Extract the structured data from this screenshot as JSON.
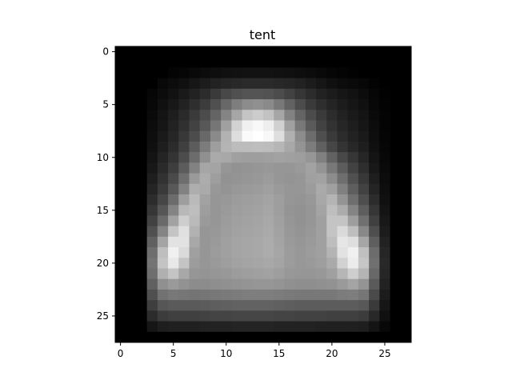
{
  "chart_data": {
    "type": "heatmap",
    "title": "tent",
    "colormap": "gray",
    "grid": false,
    "rows": 28,
    "cols": 28,
    "xlim": [
      -0.5,
      27.5
    ],
    "ylim": [
      27.5,
      -0.5
    ],
    "x_ticks": [
      0,
      5,
      10,
      15,
      20,
      25
    ],
    "y_ticks": [
      0,
      5,
      10,
      15,
      20,
      25
    ],
    "value_range": [
      0,
      255
    ],
    "values": [
      [
        0,
        0,
        0,
        0,
        0,
        0,
        0,
        0,
        0,
        0,
        0,
        0,
        0,
        0,
        0,
        0,
        0,
        0,
        0,
        0,
        0,
        0,
        0,
        0,
        0,
        0,
        0,
        0
      ],
      [
        0,
        0,
        0,
        0,
        0,
        0,
        0,
        0,
        0,
        0,
        0,
        0,
        0,
        0,
        0,
        0,
        0,
        0,
        0,
        0,
        0,
        0,
        0,
        0,
        0,
        0,
        0,
        0
      ],
      [
        0,
        0,
        0,
        0,
        0,
        4,
        6,
        9,
        12,
        14,
        16,
        17,
        18,
        18,
        18,
        17,
        16,
        14,
        12,
        9,
        6,
        4,
        2,
        0,
        0,
        0,
        0,
        0
      ],
      [
        0,
        0,
        0,
        0,
        8,
        12,
        16,
        22,
        28,
        34,
        38,
        40,
        42,
        42,
        42,
        40,
        38,
        34,
        28,
        22,
        16,
        12,
        10,
        7,
        3,
        0,
        0,
        0
      ],
      [
        0,
        0,
        0,
        6,
        12,
        18,
        26,
        34,
        44,
        58,
        72,
        80,
        84,
        84,
        82,
        76,
        66,
        54,
        44,
        34,
        28,
        22,
        18,
        12,
        6,
        2,
        0,
        0
      ],
      [
        0,
        0,
        0,
        8,
        16,
        24,
        34,
        46,
        60,
        80,
        104,
        126,
        140,
        144,
        138,
        120,
        98,
        76,
        58,
        46,
        36,
        28,
        22,
        16,
        8,
        3,
        0,
        0
      ],
      [
        0,
        0,
        0,
        10,
        20,
        30,
        42,
        58,
        76,
        100,
        132,
        166,
        196,
        204,
        194,
        166,
        130,
        100,
        76,
        58,
        44,
        34,
        26,
        20,
        10,
        4,
        0,
        0
      ],
      [
        0,
        0,
        0,
        12,
        22,
        34,
        48,
        66,
        88,
        118,
        160,
        210,
        240,
        248,
        238,
        208,
        160,
        120,
        90,
        66,
        50,
        38,
        30,
        22,
        12,
        4,
        0,
        0
      ],
      [
        0,
        0,
        0,
        14,
        26,
        38,
        56,
        76,
        104,
        138,
        178,
        222,
        250,
        255,
        248,
        222,
        176,
        140,
        108,
        78,
        58,
        44,
        34,
        26,
        14,
        5,
        0,
        0
      ],
      [
        0,
        0,
        0,
        16,
        30,
        44,
        64,
        92,
        124,
        158,
        180,
        188,
        188,
        190,
        188,
        182,
        168,
        148,
        124,
        96,
        70,
        52,
        40,
        30,
        16,
        6,
        0,
        0
      ],
      [
        0,
        0,
        0,
        20,
        36,
        52,
        76,
        108,
        144,
        170,
        168,
        160,
        158,
        158,
        160,
        162,
        160,
        158,
        150,
        128,
        98,
        72,
        54,
        38,
        20,
        8,
        0,
        0
      ],
      [
        0,
        0,
        0,
        24,
        42,
        62,
        92,
        130,
        166,
        164,
        150,
        146,
        148,
        150,
        152,
        150,
        150,
        154,
        162,
        148,
        120,
        92,
        66,
        46,
        24,
        10,
        0,
        0
      ],
      [
        0,
        0,
        0,
        30,
        50,
        74,
        110,
        154,
        172,
        158,
        146,
        148,
        150,
        152,
        156,
        150,
        148,
        150,
        160,
        162,
        140,
        110,
        80,
        56,
        30,
        12,
        0,
        0
      ],
      [
        0,
        0,
        0,
        36,
        58,
        88,
        130,
        174,
        170,
        152,
        148,
        152,
        154,
        156,
        160,
        154,
        150,
        150,
        156,
        170,
        160,
        128,
        94,
        66,
        36,
        14,
        0,
        0
      ],
      [
        0,
        0,
        0,
        44,
        70,
        108,
        158,
        186,
        162,
        150,
        152,
        156,
        158,
        160,
        164,
        158,
        150,
        148,
        152,
        168,
        180,
        148,
        110,
        78,
        44,
        16,
        0,
        0
      ],
      [
        0,
        0,
        0,
        54,
        86,
        132,
        184,
        190,
        158,
        150,
        154,
        158,
        160,
        162,
        166,
        158,
        148,
        146,
        150,
        164,
        190,
        172,
        132,
        94,
        54,
        20,
        0,
        0
      ],
      [
        0,
        0,
        0,
        66,
        106,
        162,
        206,
        186,
        154,
        150,
        156,
        160,
        162,
        164,
        168,
        160,
        150,
        146,
        150,
        160,
        196,
        196,
        158,
        112,
        64,
        24,
        0,
        0
      ],
      [
        0,
        0,
        0,
        80,
        132,
        196,
        224,
        178,
        150,
        152,
        158,
        162,
        164,
        166,
        170,
        162,
        152,
        148,
        152,
        160,
        196,
        218,
        190,
        136,
        78,
        28,
        0,
        0
      ],
      [
        0,
        0,
        0,
        96,
        164,
        226,
        226,
        168,
        150,
        154,
        160,
        164,
        166,
        168,
        172,
        164,
        154,
        150,
        154,
        160,
        190,
        230,
        222,
        166,
        94,
        34,
        0,
        0
      ],
      [
        0,
        0,
        0,
        110,
        190,
        240,
        218,
        160,
        150,
        156,
        160,
        164,
        166,
        168,
        172,
        166,
        156,
        152,
        156,
        160,
        180,
        226,
        240,
        192,
        108,
        38,
        0,
        0
      ],
      [
        0,
        0,
        0,
        116,
        196,
        232,
        196,
        156,
        150,
        154,
        158,
        162,
        164,
        166,
        168,
        164,
        156,
        152,
        154,
        158,
        170,
        210,
        236,
        198,
        112,
        40,
        0,
        0
      ],
      [
        0,
        0,
        0,
        110,
        176,
        196,
        168,
        150,
        148,
        150,
        152,
        156,
        158,
        160,
        162,
        158,
        152,
        150,
        150,
        152,
        160,
        182,
        206,
        180,
        104,
        38,
        0,
        0
      ],
      [
        0,
        0,
        0,
        96,
        144,
        154,
        146,
        140,
        140,
        142,
        144,
        146,
        148,
        150,
        150,
        148,
        144,
        142,
        142,
        144,
        146,
        154,
        164,
        148,
        90,
        34,
        0,
        0
      ],
      [
        0,
        0,
        0,
        80,
        114,
        120,
        118,
        116,
        118,
        120,
        122,
        124,
        126,
        126,
        126,
        124,
        122,
        120,
        120,
        120,
        120,
        124,
        126,
        118,
        74,
        28,
        0,
        0
      ],
      [
        0,
        0,
        0,
        62,
        86,
        90,
        90,
        90,
        92,
        94,
        96,
        98,
        98,
        98,
        98,
        96,
        94,
        92,
        92,
        92,
        92,
        92,
        92,
        88,
        58,
        22,
        0,
        0
      ],
      [
        0,
        0,
        0,
        44,
        60,
        64,
        64,
        64,
        66,
        68,
        68,
        70,
        70,
        70,
        70,
        68,
        68,
        66,
        66,
        66,
        64,
        64,
        64,
        60,
        40,
        16,
        0,
        0
      ],
      [
        0,
        0,
        0,
        22,
        30,
        32,
        32,
        32,
        34,
        34,
        34,
        36,
        36,
        36,
        36,
        34,
        34,
        34,
        34,
        32,
        32,
        32,
        32,
        30,
        20,
        8,
        0,
        0
      ],
      [
        0,
        0,
        0,
        0,
        0,
        0,
        0,
        0,
        0,
        0,
        0,
        0,
        0,
        0,
        0,
        0,
        0,
        0,
        0,
        0,
        0,
        0,
        0,
        0,
        0,
        0,
        0,
        0
      ]
    ]
  }
}
